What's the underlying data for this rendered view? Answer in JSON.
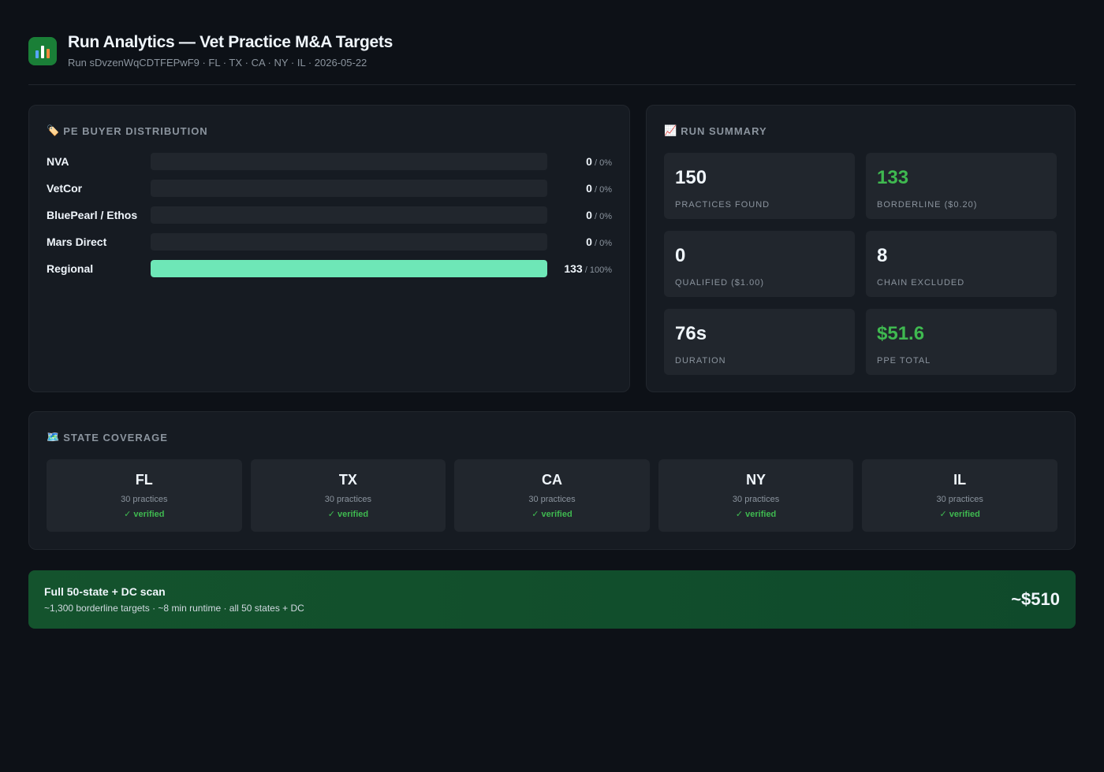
{
  "header": {
    "title": "Run Analytics — Vet Practice M&A Targets",
    "subtitle": "Run sDvzenWqCDTFEPwF9 · FL · TX · CA · NY · IL · 2026-05-22",
    "icon": "bar-chart-icon"
  },
  "pe_distribution": {
    "icon": "tag-icon",
    "title": "PE Buyer Distribution",
    "bar_color": "#6ee7b7",
    "rows": [
      {
        "label": "NVA",
        "count": "0",
        "pct": " / 0%",
        "fraction": 0
      },
      {
        "label": "VetCor",
        "count": "0",
        "pct": " / 0%",
        "fraction": 0
      },
      {
        "label": "BluePearl / Ethos",
        "count": "0",
        "pct": " / 0%",
        "fraction": 0
      },
      {
        "label": "Mars Direct",
        "count": "0",
        "pct": " / 0%",
        "fraction": 0
      },
      {
        "label": "Regional",
        "count": "133",
        "pct": " / 100%",
        "fraction": 1
      }
    ]
  },
  "summary": {
    "icon": "chart-increasing-icon",
    "title": "Run Summary",
    "stats": [
      {
        "value": "150",
        "label": "Practices Found",
        "accent": false
      },
      {
        "value": "133",
        "label": "Borderline ($0.20)",
        "accent": true
      },
      {
        "value": "0",
        "label": "Qualified ($1.00)",
        "accent": false
      },
      {
        "value": "8",
        "label": "Chain Excluded",
        "accent": false
      },
      {
        "value": "76s",
        "label": "Duration",
        "accent": false
      },
      {
        "value": "$51.6",
        "label": "PPE Total",
        "accent": true
      }
    ]
  },
  "coverage": {
    "icon": "map-icon",
    "title": "State Coverage",
    "states": [
      {
        "code": "FL",
        "count": "30 practices",
        "status": "✓ verified"
      },
      {
        "code": "TX",
        "count": "30 practices",
        "status": "✓ verified"
      },
      {
        "code": "CA",
        "count": "30 practices",
        "status": "✓ verified"
      },
      {
        "code": "NY",
        "count": "30 practices",
        "status": "✓ verified"
      },
      {
        "code": "IL",
        "count": "30 practices",
        "status": "✓ verified"
      }
    ]
  },
  "banner": {
    "title": "Full 50-state + DC scan",
    "subtitle": "~1,300 borderline targets · ~8 min runtime · all 50 states + DC",
    "price": "~$510"
  }
}
